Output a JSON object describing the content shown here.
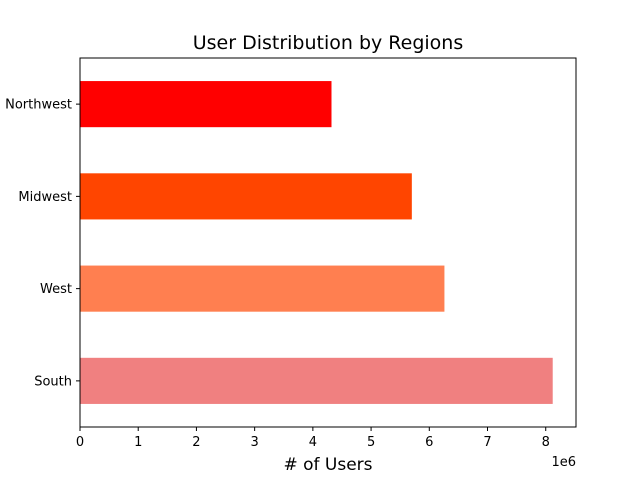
{
  "chart_data": {
    "type": "bar",
    "orientation": "horizontal",
    "title": "User Distribution by Regions",
    "xlabel": "# of Users",
    "ylabel": "",
    "x_offset_label": "1e6",
    "categories": [
      "South",
      "West",
      "Midwest",
      "Northwest"
    ],
    "values": [
      8120000,
      6260000,
      5700000,
      4320000
    ],
    "colors": [
      "#f08080",
      "#ff7f50",
      "#ff4500",
      "#ff0000"
    ],
    "xlim": [
      0,
      8.52
    ],
    "x_scale": 1000000,
    "xticks": [
      0,
      1,
      2,
      3,
      4,
      5,
      6,
      7,
      8
    ],
    "xtick_labels": [
      "0",
      "1",
      "2",
      "3",
      "4",
      "5",
      "6",
      "7",
      "8"
    ],
    "grid": false,
    "legend": "none"
  }
}
